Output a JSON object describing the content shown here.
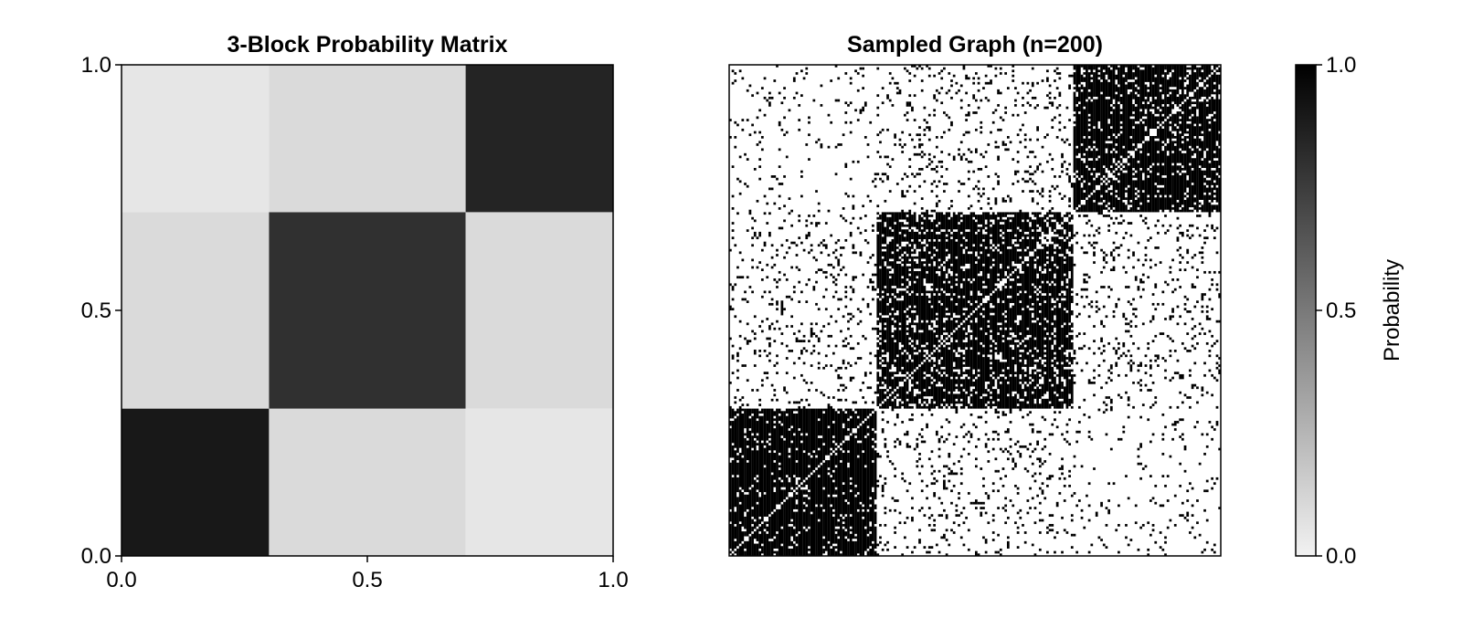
{
  "chart_data": [
    {
      "type": "heatmap",
      "title": "3-Block Probability Matrix",
      "x_ticks": [
        "0.0",
        "0.5",
        "1.0"
      ],
      "y_ticks": [
        "0.0",
        "0.5",
        "1.0"
      ],
      "xlim": [
        0,
        1
      ],
      "ylim": [
        0,
        1
      ],
      "block_boundaries": [
        0.0,
        0.3,
        0.7,
        1.0
      ],
      "values": [
        [
          0.9,
          0.1,
          0.05
        ],
        [
          0.1,
          0.8,
          0.1
        ],
        [
          0.05,
          0.1,
          0.85
        ]
      ],
      "colormap": "grays",
      "grid": false
    },
    {
      "type": "heatmap",
      "title": "Sampled Graph (n=200)",
      "n": 200,
      "block_sizes": [
        60,
        80,
        60
      ],
      "edge_probabilities": [
        [
          0.9,
          0.1,
          0.05
        ],
        [
          0.1,
          0.8,
          0.1
        ],
        [
          0.05,
          0.1,
          0.85
        ]
      ],
      "diagonal": 0,
      "axes_visible": false
    }
  ],
  "colorbar": {
    "label": "Probability",
    "ticks": [
      "0.0",
      "0.5",
      "1.0"
    ],
    "range": [
      0,
      1
    ],
    "color_low": "#f2f2f2",
    "color_high": "#000000"
  }
}
